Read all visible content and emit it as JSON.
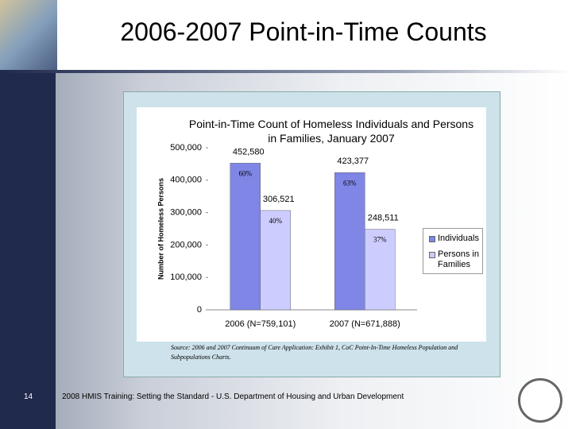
{
  "slide": {
    "title": "2006-2007 Point-in-Time Counts",
    "footer": "2008 HMIS Training: Setting the Standard - U.S. Department of Housing and Urban Development",
    "page_number": "14"
  },
  "chart_data": {
    "type": "bar",
    "title": "Point-in-Time Count of Homeless Individuals and Persons in Families, January 2007",
    "y_label": "Number of Homeless Persons",
    "source": "Source: 2006 and 2007 Continuum of Care Application: Exhibit 1, CoC Point-In-Time Homeless Population and Subpopulations Charts.",
    "categories": [
      "2006 (N=759,101)",
      "2007 (N=671,888)"
    ],
    "series": [
      {
        "name": "Individuals",
        "color": "#7f86e6",
        "values": [
          452580,
          423377
        ],
        "value_labels": [
          "452,580",
          "423,377"
        ],
        "percent_labels": [
          "60%",
          "63%"
        ]
      },
      {
        "name": "Persons in Families",
        "color": "#ccccff",
        "values": [
          306521,
          248511
        ],
        "value_labels": [
          "306,521",
          "248,511"
        ],
        "percent_labels": [
          "40%",
          "37%"
        ]
      }
    ],
    "ylim": [
      0,
      500000
    ],
    "yticks": [
      0,
      {
        "value": 100000,
        "label": "100,000"
      },
      {
        "value": 200000,
        "label": "200,000"
      },
      {
        "value": 300000,
        "label": "300,000"
      },
      {
        "value": 400000,
        "label": "400,000"
      },
      {
        "value": 500000,
        "label": "500,000"
      }
    ],
    "legend": "right"
  }
}
